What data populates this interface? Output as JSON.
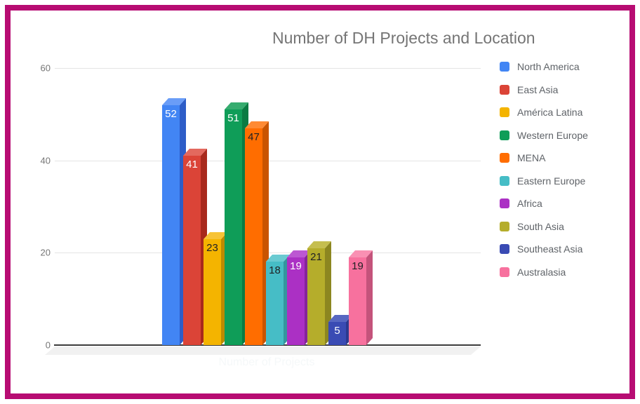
{
  "frame": {
    "border_color": "#B70C72"
  },
  "chart_data": {
    "type": "bar",
    "style": "3d-column",
    "title": "Number of DH Projects and Location",
    "xlabel": "Number of Projects",
    "ylabel": "",
    "categories": [
      "North America",
      "East Asia",
      "América Latina",
      "Western Europe",
      "MENA",
      "Eastern Europe",
      "Africa",
      "South Asia",
      "Southeast Asia",
      "Australasia"
    ],
    "values": [
      52,
      41,
      23,
      51,
      47,
      18,
      19,
      21,
      5,
      19
    ],
    "bar_colors_front": [
      "#4285F4",
      "#DB4437",
      "#F4B400",
      "#0F9D58",
      "#FF6D00",
      "#46BDC6",
      "#AB30C4",
      "#B5AD2B",
      "#3A4BB4",
      "#F7719E"
    ],
    "bar_colors_side": [
      "#2D5DC8",
      "#A8291C",
      "#BD8A00",
      "#0A7B43",
      "#C95400",
      "#33969E",
      "#85259A",
      "#8C8620",
      "#2C3A8F",
      "#C4537B"
    ],
    "bar_colors_top": [
      "#6A9DF7",
      "#E3695E",
      "#F7C336",
      "#36AC6F",
      "#FF8A33",
      "#69CAD1",
      "#BC57D2",
      "#C5BE4F",
      "#5767C1",
      "#F990B3"
    ],
    "value_label_colors": [
      "#FFFFFF",
      "#FFFFFF",
      "#202124",
      "#FFFFFF",
      "#202124",
      "#202124",
      "#FFFFFF",
      "#202124",
      "#FFFFFF",
      "#202124"
    ],
    "yticks": [
      0,
      20,
      40,
      60
    ],
    "ytick_labels": [
      "0",
      "20",
      "40",
      "60"
    ],
    "ylim": [
      0,
      60
    ],
    "grid": true,
    "legend_position": "right",
    "title_color": "#757575",
    "axis_text_color": "#757575",
    "legend_text_color": "#5F6368"
  }
}
